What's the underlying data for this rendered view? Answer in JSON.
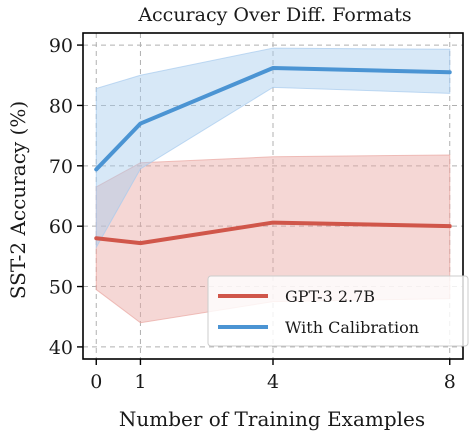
{
  "chart_data": {
    "type": "line",
    "title": "Accuracy Over Diff. Formats",
    "xlabel": "Number of Training Examples",
    "ylabel": "SST-2 Accuracy (%)",
    "x": [
      0,
      1,
      4,
      8
    ],
    "xticks": [
      "0",
      "1",
      "4",
      "8"
    ],
    "yticks": [
      "40",
      "50",
      "60",
      "70",
      "80",
      "90"
    ],
    "xlim": [
      -0.3,
      8.3
    ],
    "ylim": [
      38,
      92
    ],
    "grid": true,
    "legend_position": "lower-right",
    "series": [
      {
        "name": "GPT-3 2.7B",
        "color": "#d0564a",
        "band_color": "#e9a7a1",
        "values": [
          58.0,
          57.2,
          60.6,
          60.0
        ],
        "lower": [
          49.5,
          44.0,
          47.5,
          48.0
        ],
        "upper": [
          66.5,
          70.5,
          71.5,
          71.8
        ]
      },
      {
        "name": "With Calibration",
        "color": "#4b94d3",
        "band_color": "#a6cbee",
        "values": [
          69.4,
          77.0,
          86.2,
          85.5
        ],
        "lower": [
          56.5,
          69.5,
          83.0,
          82.0
        ],
        "upper": [
          82.8,
          85.0,
          89.5,
          89.3
        ]
      }
    ]
  }
}
